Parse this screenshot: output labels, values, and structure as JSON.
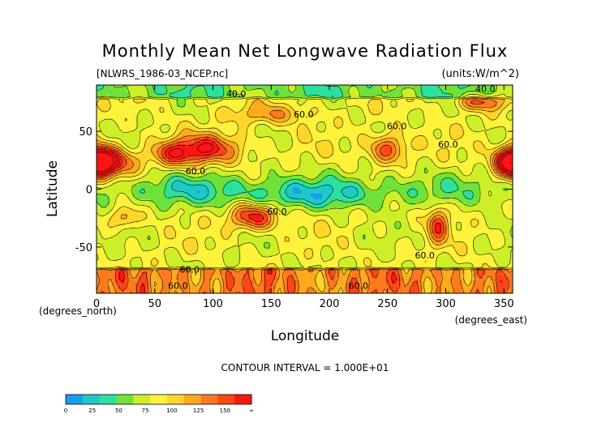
{
  "chart_data": {
    "type": "heatmap",
    "title": "Monthly Mean Net Longwave Radiation Flux",
    "subtitle_left": "[NLWRS_1986-03_NCEP.nc]",
    "subtitle_right": "(units:W/m^2)",
    "xlabel": "Longitude",
    "ylabel": "Latitude",
    "x_unit_label": "(degrees_east)",
    "y_unit_label": "(degrees_north)",
    "xlim": [
      0,
      357.5
    ],
    "ylim": [
      -90,
      90
    ],
    "x_ticks": [
      0,
      50,
      100,
      150,
      200,
      250,
      300,
      350
    ],
    "y_ticks": [
      50,
      0,
      -50
    ],
    "contour_interval_text": "CONTOUR INTERVAL = 1.000E+01",
    "contour_labels": [
      {
        "text": "40.0",
        "lon": 120,
        "lat": 80
      },
      {
        "text": "60.0",
        "lon": 178,
        "lat": 62
      },
      {
        "text": "60.0",
        "lon": 258,
        "lat": 52
      },
      {
        "text": "60.0",
        "lon": 302,
        "lat": 36
      },
      {
        "text": "40.0",
        "lon": 334,
        "lat": 84
      },
      {
        "text": "60.0",
        "lon": 85,
        "lat": 13
      },
      {
        "text": "60.0",
        "lon": 155,
        "lat": -22
      },
      {
        "text": "60.0",
        "lon": 282,
        "lat": -60
      },
      {
        "text": "60.0",
        "lon": 80,
        "lat": -72
      },
      {
        "text": "60.0",
        "lon": 70,
        "lat": -86
      },
      {
        "text": "60.0",
        "lon": 225,
        "lat": -86
      }
    ],
    "colorbar": {
      "labels": [
        "0",
        "25",
        "50",
        "75",
        "100",
        "125",
        "150",
        "∞"
      ],
      "colors": [
        "#1c9cf0",
        "#1ec8c8",
        "#2ce0a0",
        "#6ee23a",
        "#ccef28",
        "#fff23a",
        "#ffd62a",
        "#ffaa1e",
        "#ff7a1e",
        "#ff4618",
        "#ff1414"
      ]
    }
  }
}
